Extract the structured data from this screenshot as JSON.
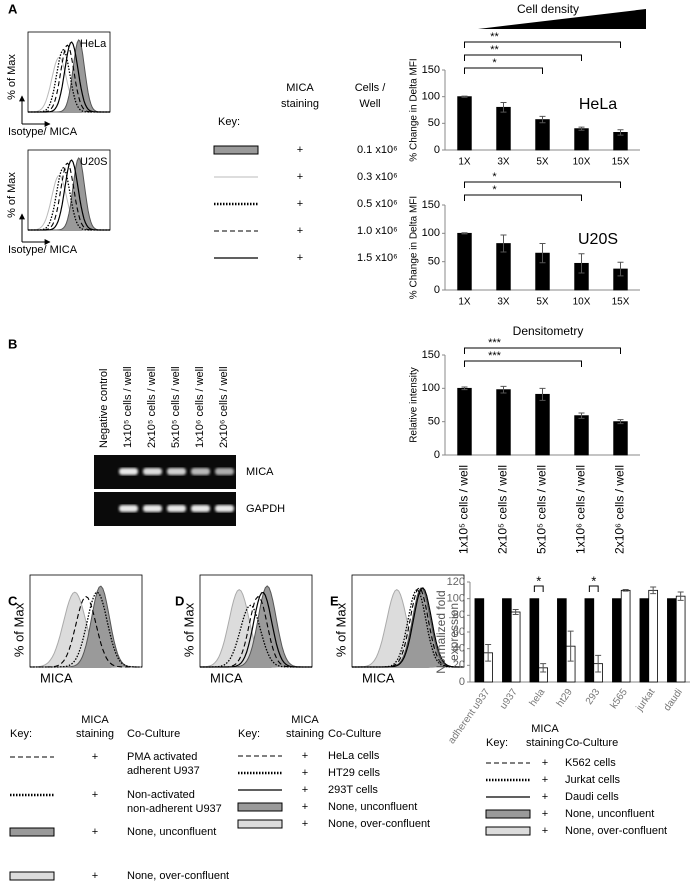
{
  "panel_labels": [
    "A",
    "B",
    "C",
    "D",
    "E"
  ],
  "panel_a": {
    "cell_density": "Cell density",
    "histograms": [
      {
        "name": "HeLa",
        "y_label": "% of Max",
        "x_label": "Isotype/ MICA"
      },
      {
        "name": "U20S",
        "y_label": "% of Max",
        "x_label": "Isotype/ MICA"
      }
    ],
    "key": {
      "title": "Key:",
      "headers": [
        [
          "MICA",
          "staining"
        ],
        [
          "Cells /",
          "Well"
        ]
      ],
      "rows": [
        {
          "staining": "+",
          "cells": "0.1 x10⁶"
        },
        {
          "staining": "+",
          "cells": "0.3 x10⁶"
        },
        {
          "staining": "+",
          "cells": "0.5 x10⁶"
        },
        {
          "staining": "+",
          "cells": "1.0 x10⁶"
        },
        {
          "staining": "+",
          "cells": "1.5 x10⁶"
        }
      ]
    }
  },
  "panel_b": {
    "lanes": [
      "Negative control",
      "1x10⁵ cells / well",
      "2x10⁵ cells / well",
      "5x10⁵ cells / well",
      "1x10⁶ cells / well",
      "2x10⁶ cells / well"
    ],
    "bands": [
      "MICA",
      "GAPDH"
    ]
  },
  "panel_c": {
    "y_label": "% of Max",
    "x_label": "MICA",
    "key": {
      "title": "Key:",
      "headers": [
        [
          "MICA",
          "staining"
        ],
        [
          "Co-Culture"
        ]
      ],
      "rows": [
        {
          "lines": [
            "PMA activated",
            "adherent U937"
          ],
          "staining": "+"
        },
        {
          "lines": [
            "Non-activated",
            "non-adherent U937"
          ],
          "staining": "+"
        },
        {
          "lines": [
            "None, unconfluent"
          ],
          "staining": "+"
        },
        {
          "lines": [
            "None, over-confluent"
          ],
          "staining": "+"
        }
      ]
    }
  },
  "panel_d": {
    "y_label": "% of Max",
    "x_label": "MICA",
    "key": {
      "title": "Key:",
      "headers": [
        [
          "MICA",
          "staining"
        ],
        [
          "Co-Culture"
        ]
      ],
      "rows": [
        {
          "lines": [
            "HeLa cells"
          ],
          "staining": "+"
        },
        {
          "lines": [
            "HT29 cells"
          ],
          "staining": "+"
        },
        {
          "lines": [
            "293T cells"
          ],
          "staining": "+"
        },
        {
          "lines": [
            "None, unconfluent"
          ],
          "staining": "+"
        },
        {
          "lines": [
            "None, over-confluent"
          ],
          "staining": "+"
        }
      ]
    }
  },
  "panel_e": {
    "y_label": "% of Max",
    "x_label": "MICA",
    "key": {
      "title": "Key:",
      "headers": [
        [
          "MICA",
          "staining"
        ],
        [
          "Co-Culture"
        ]
      ],
      "rows": [
        {
          "lines": [
            "K562 cells"
          ],
          "staining": "+"
        },
        {
          "lines": [
            "Jurkat cells"
          ],
          "staining": "+"
        },
        {
          "lines": [
            "Daudi cells"
          ],
          "staining": "+"
        },
        {
          "lines": [
            "None, unconfluent"
          ],
          "staining": "+"
        },
        {
          "lines": [
            "None, over-confluent"
          ],
          "staining": "+"
        }
      ]
    }
  },
  "chart_data": [
    {
      "type": "bar",
      "label": "HeLa",
      "y_label": "% Change in Delta MFI",
      "categories": [
        "1X",
        "3X",
        "5X",
        "10X",
        "15X"
      ],
      "series": [
        {
          "color": "#000000",
          "values": [
            100,
            80,
            57,
            40,
            33
          ],
          "errors": [
            1,
            9,
            6,
            3,
            5
          ]
        }
      ],
      "ylim": [
        0,
        150
      ],
      "yticks": [
        0,
        50,
        100,
        150
      ],
      "significance": [
        {
          "between": [
            "1X",
            "15X"
          ],
          "label": "**"
        },
        {
          "between": [
            "1X",
            "10X"
          ],
          "label": "**"
        },
        {
          "between": [
            "1X",
            "5X"
          ],
          "label": "*"
        }
      ]
    },
    {
      "type": "bar",
      "label": "U20S",
      "y_label": "% Change in Delta MFI",
      "categories": [
        "1X",
        "3X",
        "5X",
        "10X",
        "15X"
      ],
      "series": [
        {
          "color": "#000000",
          "values": [
            100,
            82,
            65,
            47,
            37
          ],
          "errors": [
            1,
            15,
            17,
            17,
            12
          ]
        }
      ],
      "ylim": [
        0,
        150
      ],
      "yticks": [
        0,
        50,
        100,
        150
      ],
      "significance": [
        {
          "between": [
            "1X",
            "15X"
          ],
          "label": "*"
        },
        {
          "between": [
            "1X",
            "10X"
          ],
          "label": "*"
        }
      ]
    },
    {
      "type": "bar",
      "title": "Densitometry",
      "y_label": "Relative intensity",
      "categories": [
        "1x10⁵ cells / well",
        "2x10⁵ cells / well",
        "5x10⁵ cells / well",
        "1x10⁶ cells / well",
        "2x10⁶ cells / well"
      ],
      "series": [
        {
          "color": "#000000",
          "values": [
            100,
            98,
            91,
            59,
            50
          ],
          "errors": [
            2,
            5,
            9,
            4,
            3
          ]
        }
      ],
      "ylim": [
        0,
        150
      ],
      "yticks": [
        0,
        50,
        100,
        150
      ],
      "significance": [
        {
          "between": [
            "1x10⁵ cells / well",
            "2x10⁶ cells / well"
          ],
          "label": "***"
        },
        {
          "between": [
            "1x10⁵ cells / well",
            "1x10⁶ cells / well"
          ],
          "label": "***"
        }
      ]
    },
    {
      "type": "bar",
      "y_label": [
        "Normalized fold",
        "expression"
      ],
      "categories": [
        "adherent u937",
        "u937",
        "hela",
        "ht29",
        "293",
        "k565",
        "jurkat",
        "daudi"
      ],
      "series": [
        {
          "color": "#000000",
          "values": [
            100,
            100,
            100,
            100,
            100,
            100,
            100,
            100
          ]
        },
        {
          "color": "#ffffff",
          "values": [
            35,
            84,
            17,
            43,
            22,
            110,
            110,
            103
          ],
          "errors": [
            10,
            3,
            5,
            18,
            10,
            1,
            4,
            5
          ]
        }
      ],
      "ylim": [
        0,
        120
      ],
      "yticks": [
        0,
        20,
        40,
        60,
        80,
        100,
        120
      ],
      "pair_significance": [
        {
          "category": "hela",
          "label": "*"
        },
        {
          "category": "293",
          "label": "*"
        }
      ]
    }
  ]
}
